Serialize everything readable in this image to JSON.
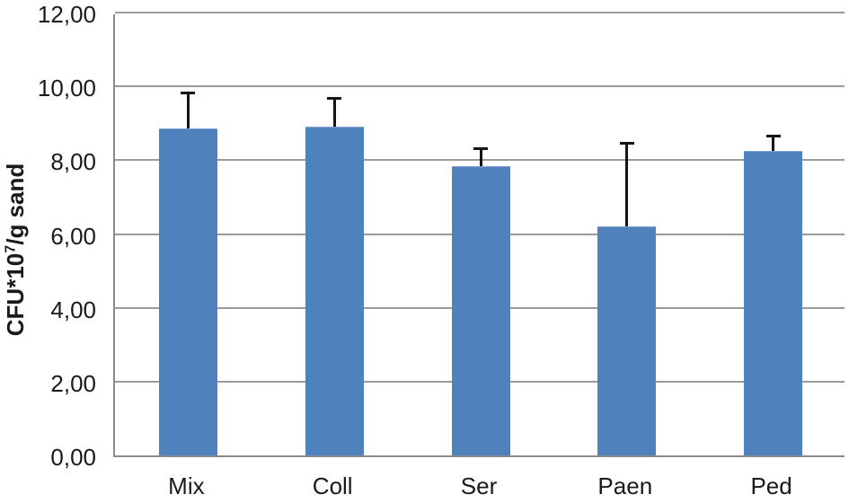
{
  "chart_data": {
    "type": "bar",
    "title": "",
    "xlabel": "",
    "ylabel": "CFU*10^7/g sand",
    "ylabel_parts": {
      "prefix": "CFU*10",
      "superscript": "7",
      "suffix": "/g sand"
    },
    "categories": [
      "Mix",
      "Coll",
      "Ser",
      "Paen",
      "Ped"
    ],
    "values": [
      8.87,
      8.92,
      7.85,
      6.2,
      8.26
    ],
    "errors_up": [
      1.0,
      0.8,
      0.5,
      2.3,
      0.43
    ],
    "ylim": [
      0,
      12
    ],
    "ytick_step": 2,
    "ytick_labels": [
      "0,00",
      "2,00",
      "4,00",
      "6,00",
      "8,00",
      "10,00",
      "12,00"
    ],
    "decimal_separator": ",",
    "grid": true,
    "legend": false,
    "colors": {
      "bar_fill": "#4F81BD",
      "bar_edge": "#7da3d4",
      "error_bar": "#141414",
      "gridline": "#9a9a9a",
      "axis_line": "#8a8a8a",
      "text": "#1a1a1a",
      "background": "#ffffff"
    }
  }
}
